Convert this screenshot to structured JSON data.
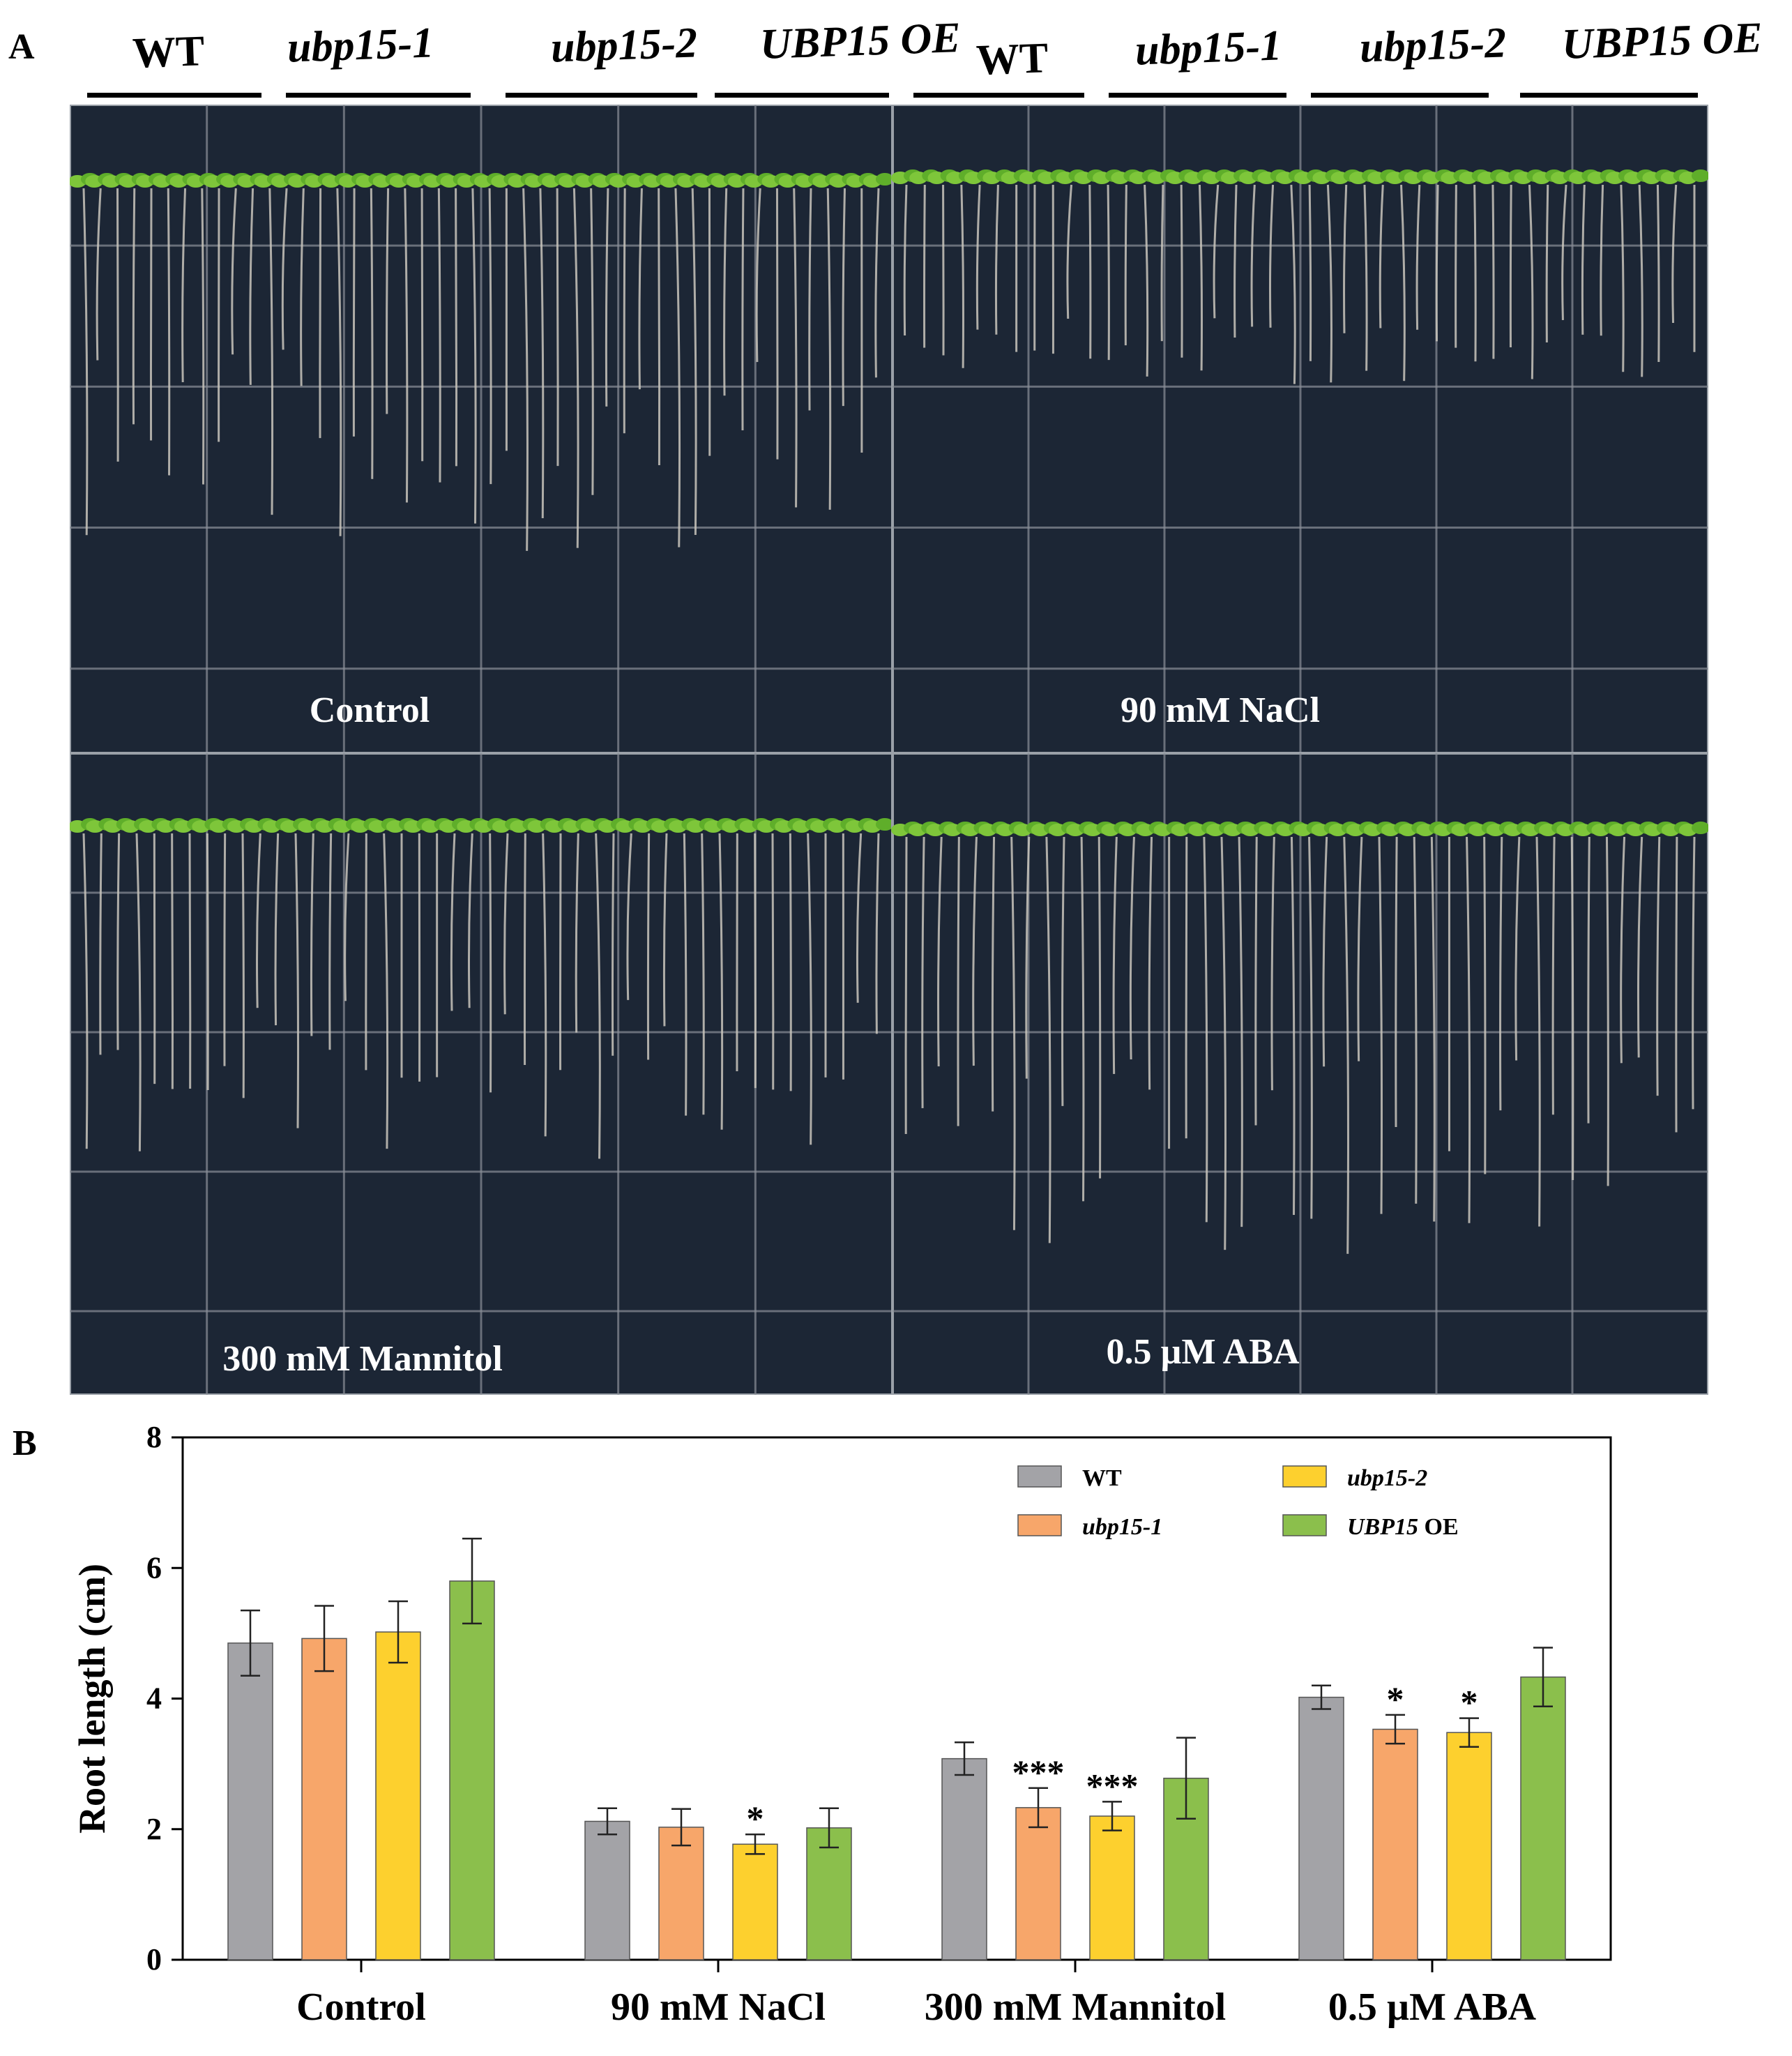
{
  "panel_a": {
    "letter": "A",
    "genotype_labels": [
      "WT",
      "ubp15-1",
      "ubp15-2",
      "UBP15 OE",
      "WT",
      "ubp15-1",
      "ubp15-2",
      "UBP15 OE"
    ],
    "conditions": [
      "Control",
      "90 mM NaCl",
      "300 mM Mannitol",
      "0.5 µM ABA"
    ],
    "colors": {
      "plate": "#1c2635",
      "grid": "#8a8f98",
      "leaf": "#7ec63a",
      "root": "#c9c6bc"
    }
  },
  "panel_b": {
    "letter": "B"
  },
  "chart_data": {
    "type": "bar",
    "ylabel": "Root length (cm)",
    "xlabel": "",
    "ylim": [
      0,
      8
    ],
    "yticks": [
      0,
      2,
      4,
      6,
      8
    ],
    "categories": [
      "Control",
      "90 mM NaCl",
      "300 mM Mannitol",
      "0.5 µM ABA"
    ],
    "legend_position": "top-right",
    "series": [
      {
        "name": "WT",
        "italic": false,
        "color": "#a3a3a7",
        "values": [
          4.85,
          2.12,
          3.08,
          4.02
        ],
        "errors": [
          0.5,
          0.2,
          0.25,
          0.18
        ],
        "sig": [
          "",
          "",
          "",
          ""
        ]
      },
      {
        "name": "ubp15-1",
        "italic": true,
        "color": "#f7a66a",
        "values": [
          4.92,
          2.03,
          2.33,
          3.53
        ],
        "errors": [
          0.5,
          0.28,
          0.3,
          0.22
        ],
        "sig": [
          "",
          "",
          "***",
          "*"
        ]
      },
      {
        "name": "ubp15-2",
        "italic": true,
        "color": "#fdd02e",
        "values": [
          5.02,
          1.77,
          2.2,
          3.48
        ],
        "errors": [
          0.47,
          0.15,
          0.22,
          0.22
        ],
        "sig": [
          "",
          "*",
          "***",
          "*"
        ]
      },
      {
        "name": "UBP15",
        "suffix": " OE",
        "italic": true,
        "color": "#8bbf4c",
        "values": [
          5.8,
          2.02,
          2.78,
          4.33
        ],
        "errors": [
          0.65,
          0.3,
          0.62,
          0.45
        ],
        "sig": [
          "",
          "",
          "",
          ""
        ]
      }
    ]
  }
}
